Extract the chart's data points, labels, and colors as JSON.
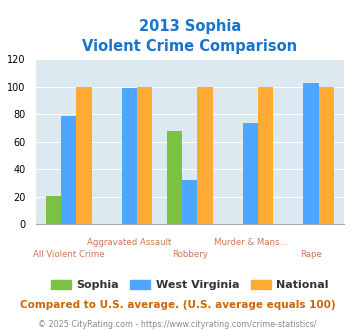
{
  "title_line1": "2013 Sophia",
  "title_line2": "Violent Crime Comparison",
  "title_color": "#1874cd",
  "categories": [
    "All Violent Crime",
    "Aggravated Assault",
    "Robbery",
    "Murder & Mans...",
    "Rape"
  ],
  "top_labels": [
    "",
    "Aggravated Assault",
    "",
    "Murder & Mans...",
    ""
  ],
  "bot_labels": [
    "All Violent Crime",
    "",
    "Robbery",
    "",
    "Rape"
  ],
  "series": {
    "Sophia": [
      21,
      0,
      68,
      0,
      0
    ],
    "West Virginia": [
      79,
      99,
      32,
      74,
      103
    ],
    "National": [
      100,
      100,
      100,
      100,
      100
    ]
  },
  "colors": {
    "Sophia": "#7bc142",
    "West Virginia": "#4da6ff",
    "National": "#ffaa33"
  },
  "ylim": [
    0,
    120
  ],
  "yticks": [
    0,
    20,
    40,
    60,
    80,
    100,
    120
  ],
  "plot_bg": "#dce9f0",
  "fig_bg": "#ffffff",
  "label_color": "#cc7755",
  "footnote1": "Compared to U.S. average. (U.S. average equals 100)",
  "footnote2_part1": "© 2025 CityRating.com - ",
  "footnote2_part2": "https://www.cityrating.com/crime-statistics/",
  "footnote1_color": "#cc6600",
  "footnote2_color1": "#888888",
  "footnote2_color2": "#4488cc"
}
